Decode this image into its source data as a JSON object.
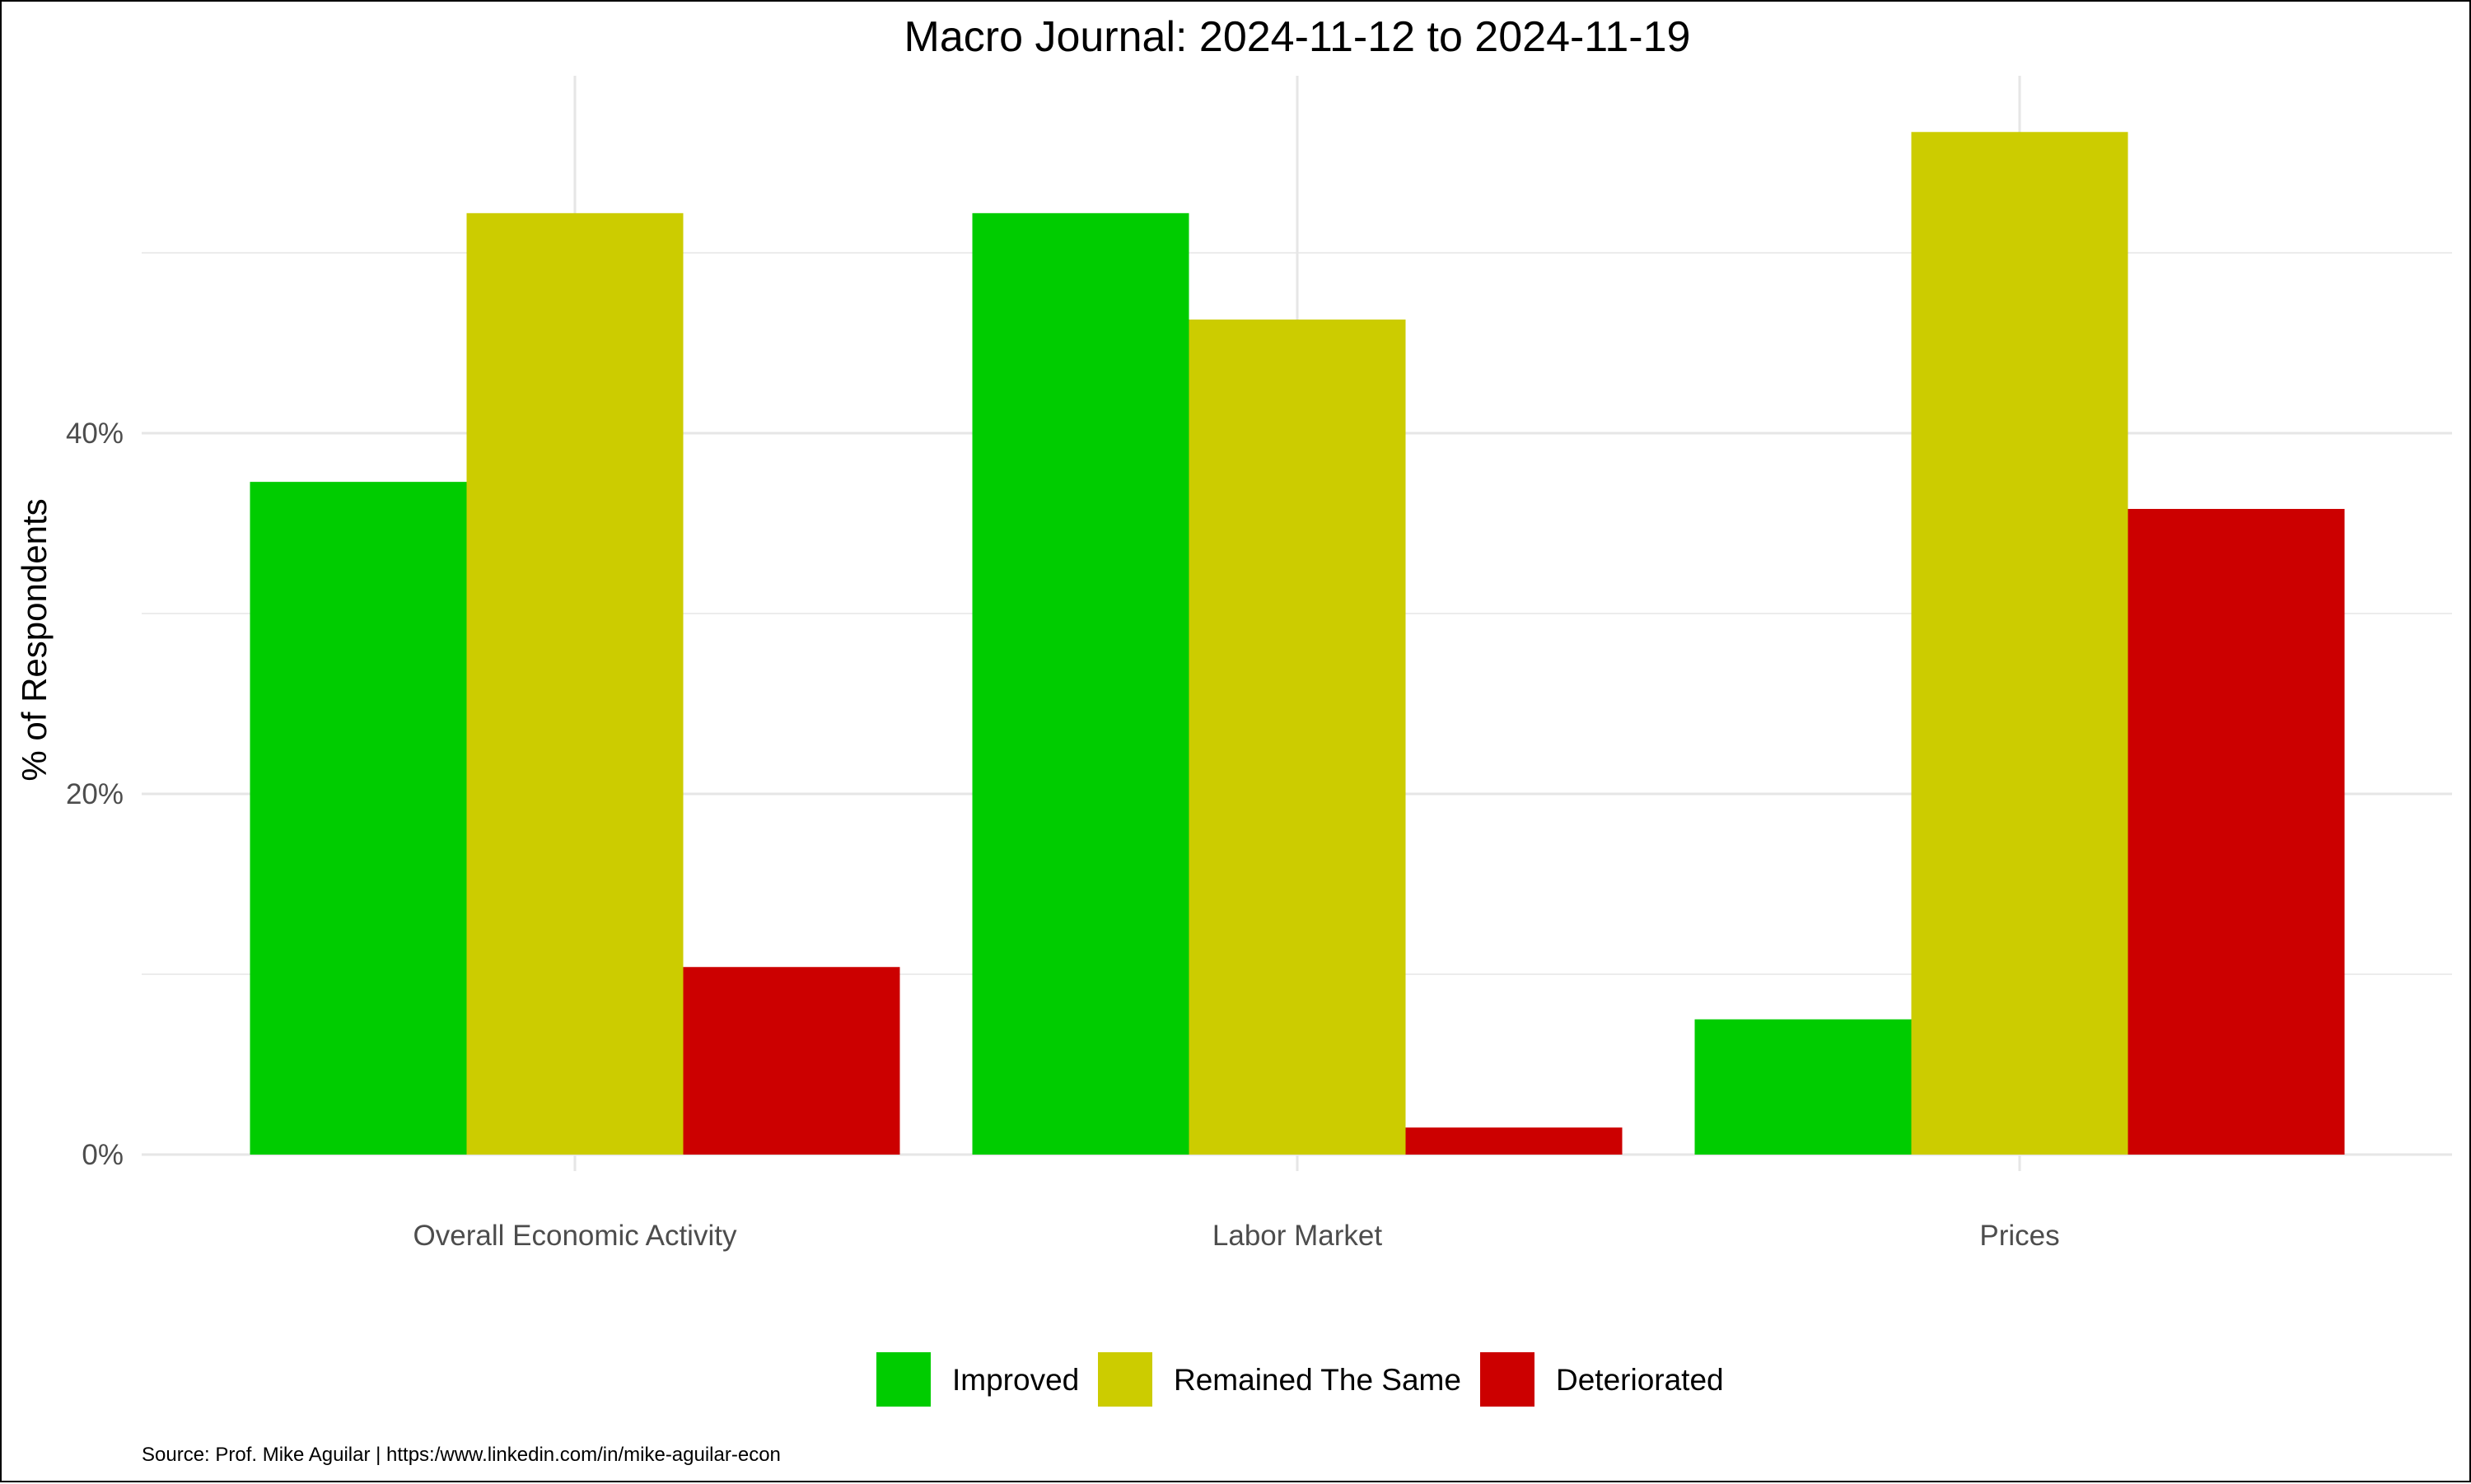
{
  "chart_data": {
    "type": "bar",
    "title": "Macro Journal:  2024-11-12 to 2024-11-19",
    "xlabel": "",
    "ylabel": "% of Respondents",
    "ylim": [
      -0.8,
      60
    ],
    "y_ticks": [
      0,
      20,
      40
    ],
    "y_tick_labels": [
      "0%",
      "20%",
      "40%"
    ],
    "y_minor_ticks": [
      10,
      30,
      50
    ],
    "grid": true,
    "categories": [
      "Overall Economic Activity",
      "Labor Market",
      "Prices"
    ],
    "series": [
      {
        "name": "Improved",
        "color": "#00cc00",
        "values": [
          37.3,
          52.2,
          7.5
        ]
      },
      {
        "name": "Remained The Same",
        "color": "#cccc00",
        "values": [
          52.2,
          46.3,
          56.7
        ]
      },
      {
        "name": "Deteriorated",
        "color": "#cc0000",
        "values": [
          10.4,
          1.5,
          35.8
        ]
      }
    ],
    "legend_position": "bottom",
    "caption": "Source: Prof. Mike Aguilar  | https:/www.linkedin.com/in/mike-aguilar-econ"
  }
}
